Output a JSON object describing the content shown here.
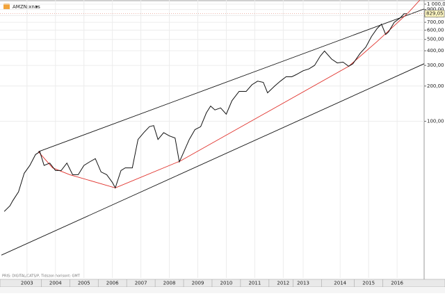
{
  "chart_data": {
    "type": "line",
    "title": "AMZN:xnas",
    "footnote": "PRIS: DIGITAL/CATS/P, Tidszon horisont: GMT",
    "log_scale": true,
    "grid": true,
    "color": "#111111",
    "x": [
      2002.7,
      2002.9,
      2003.0,
      2003.2,
      2003.4,
      2003.6,
      2003.8,
      2003.95,
      2004.1,
      2004.3,
      2004.5,
      2004.7,
      2004.9,
      2005.1,
      2005.3,
      2005.5,
      2005.7,
      2005.9,
      2006.1,
      2006.3,
      2006.5,
      2006.6,
      2006.8,
      2006.95,
      2007.2,
      2007.4,
      2007.6,
      2007.8,
      2007.95,
      2008.1,
      2008.3,
      2008.5,
      2008.7,
      2008.85,
      2008.95,
      2009.2,
      2009.4,
      2009.6,
      2009.8,
      2009.95,
      2010.1,
      2010.3,
      2010.5,
      2010.7,
      2010.95,
      2011.2,
      2011.4,
      2011.6,
      2011.8,
      2011.95,
      2012.2,
      2012.4,
      2012.6,
      2012.8,
      2012.95,
      2013.2,
      2013.4,
      2013.6,
      2013.8,
      2013.95,
      2014.2,
      2014.4,
      2014.6,
      2014.8,
      2014.95,
      2015.2,
      2015.4,
      2015.6,
      2015.8,
      2015.95,
      2016.1,
      2016.2,
      2016.4,
      2016.6,
      2016.75,
      2016.85
    ],
    "values": [
      17,
      19,
      21,
      25,
      36,
      42,
      52,
      55,
      42,
      44,
      38,
      38,
      44,
      35,
      35,
      42,
      45,
      48,
      37,
      35,
      30,
      27,
      38,
      40,
      40,
      70,
      80,
      90,
      92,
      70,
      80,
      75,
      72,
      45,
      51,
      70,
      85,
      90,
      118,
      135,
      125,
      130,
      115,
      150,
      180,
      180,
      205,
      220,
      215,
      175,
      200,
      220,
      240,
      240,
      250,
      270,
      280,
      300,
      360,
      398,
      340,
      315,
      320,
      295,
      310,
      380,
      430,
      530,
      620,
      675,
      550,
      580,
      700,
      760,
      830,
      829.05
    ],
    "last_label": "829,05",
    "annotations": [
      {
        "color": "#111111",
        "x": [
          2003.9,
          2017.45
        ],
        "values": [
          55,
          910
        ]
      },
      {
        "color": "#111111",
        "x": [
          2002.6,
          2017.45
        ],
        "values": [
          7.2,
          310
        ]
      },
      {
        "color": "#e0302a",
        "x": [
          2003.9,
          2004.4,
          2005.0,
          2006.6,
          2008.9,
          2014.8,
          2015.8,
          2016.9,
          2017.3
        ],
        "values": [
          55,
          40,
          35,
          27,
          46,
          295,
          480,
          850,
          1085
        ]
      }
    ],
    "xlim": [
      2002.6,
      2017.45
    ],
    "xticks": [
      {
        "value": 2003.5,
        "label": "2003"
      },
      {
        "value": 2004.5,
        "label": "2004"
      },
      {
        "value": 2005.5,
        "label": "2005"
      },
      {
        "value": 2006.5,
        "label": "2006"
      },
      {
        "value": 2007.5,
        "label": "2007"
      },
      {
        "value": 2008.5,
        "label": "2008"
      },
      {
        "value": 2009.5,
        "label": "2009"
      },
      {
        "value": 2010.5,
        "label": "2010"
      },
      {
        "value": 2011.5,
        "label": "2011"
      },
      {
        "value": 2012.5,
        "label": "2012"
      },
      {
        "value": 2013.2,
        "label": "2013"
      },
      {
        "value": 2014.5,
        "label": "2014"
      },
      {
        "value": 2015.5,
        "label": "2015"
      },
      {
        "value": 2016.5,
        "label": "2016"
      }
    ],
    "ylim": [
      4.6,
      1085
    ],
    "yticks": [
      {
        "value": 1000,
        "label": "1 000,00"
      },
      {
        "value": 900,
        "label": "900,00"
      },
      {
        "value": 800,
        "label": "800,00"
      },
      {
        "value": 700,
        "label": "700,00"
      },
      {
        "value": 600,
        "label": "600,00"
      },
      {
        "value": 500,
        "label": "500,00"
      },
      {
        "value": 400,
        "label": "400,00"
      },
      {
        "value": 300,
        "label": "300,00"
      },
      {
        "value": 200,
        "label": "200,00"
      },
      {
        "value": 100,
        "label": "100,00"
      }
    ]
  }
}
